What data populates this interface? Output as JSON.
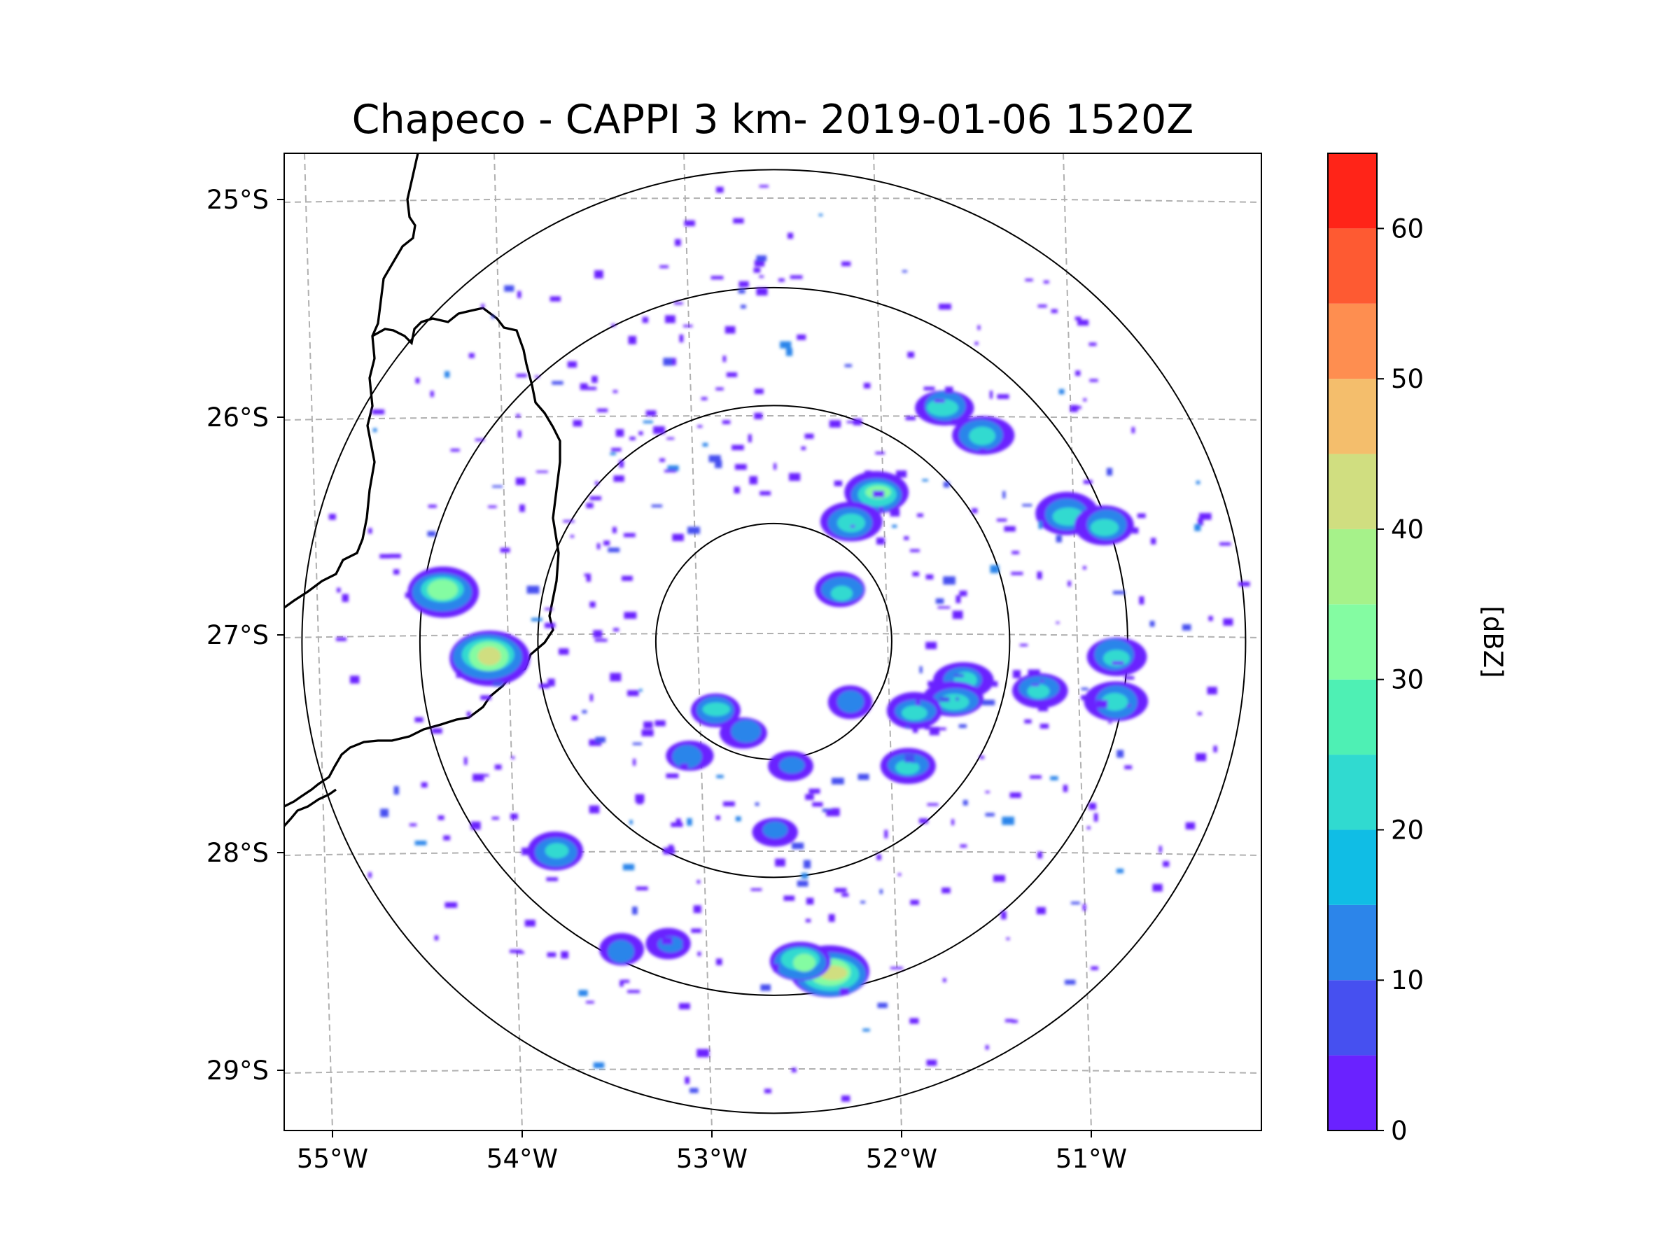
{
  "chart_data": {
    "type": "heatmap",
    "title": "Chapeco - CAPPI 3 km- 2019-01-06 1520Z",
    "radar_center": {
      "lon": -52.6,
      "lat": -27.03
    },
    "range_rings_deg": [
      0.5,
      1.0,
      1.5,
      2.0
    ],
    "map_extent": {
      "lon": [
        -55.2,
        -50.0
      ],
      "lat": [
        -29.3,
        -24.8
      ]
    },
    "x_ticks": [
      {
        "lon": -55,
        "label": "55°W"
      },
      {
        "lon": -54,
        "label": "54°W"
      },
      {
        "lon": -53,
        "label": "53°W"
      },
      {
        "lon": -52,
        "label": "52°W"
      },
      {
        "lon": -51,
        "label": "51°W"
      }
    ],
    "y_ticks": [
      {
        "lat": -25,
        "label": "25°S"
      },
      {
        "lat": -26,
        "label": "26°S"
      },
      {
        "lat": -27,
        "label": "27°S"
      },
      {
        "lat": -28,
        "label": "28°S"
      },
      {
        "lat": -29,
        "label": "29°S"
      }
    ],
    "gridlines": true,
    "colorbar": {
      "label": "[dBZ]",
      "min": 0,
      "max": 65,
      "bounds": [
        0,
        5,
        10,
        15,
        20,
        25,
        30,
        35,
        40,
        45,
        50,
        55,
        60,
        65
      ],
      "colors": [
        "#6a22ff",
        "#4650f0",
        "#2c85ea",
        "#10bde5",
        "#30dad0",
        "#4ef0b4",
        "#84fca2",
        "#a6f28a",
        "#d0de80",
        "#f4be6c",
        "#fe8e50",
        "#fe5a32",
        "#ff2418"
      ],
      "ticks": [
        0,
        10,
        20,
        30,
        40,
        50,
        60
      ],
      "tick_labels": [
        "0",
        "10",
        "20",
        "30",
        "40",
        "50",
        "60"
      ]
    },
    "echoes": [
      {
        "lon": -52.05,
        "lat": -26.35,
        "dbz": 30
      },
      {
        "lon": -52.2,
        "lat": -26.48,
        "dbz": 28
      },
      {
        "lon": -51.5,
        "lat": -26.08,
        "dbz": 28
      },
      {
        "lon": -51.7,
        "lat": -25.95,
        "dbz": 25
      },
      {
        "lon": -51.05,
        "lat": -26.45,
        "dbz": 28
      },
      {
        "lon": -50.85,
        "lat": -26.5,
        "dbz": 25
      },
      {
        "lon": -50.8,
        "lat": -27.1,
        "dbz": 25
      },
      {
        "lon": -50.8,
        "lat": -27.3,
        "dbz": 28
      },
      {
        "lon": -51.6,
        "lat": -27.2,
        "dbz": 25
      },
      {
        "lon": -51.65,
        "lat": -27.3,
        "dbz": 25
      },
      {
        "lon": -51.85,
        "lat": -27.35,
        "dbz": 20
      },
      {
        "lon": -51.9,
        "lat": -27.6,
        "dbz": 20
      },
      {
        "lon": -51.2,
        "lat": -27.25,
        "dbz": 20
      },
      {
        "lon": -52.25,
        "lat": -26.8,
        "dbz": 22
      },
      {
        "lon": -52.3,
        "lat": -28.55,
        "dbz": 45
      },
      {
        "lon": -52.45,
        "lat": -28.5,
        "dbz": 30
      },
      {
        "lon": -54.35,
        "lat": -26.8,
        "dbz": 38
      },
      {
        "lon": -54.1,
        "lat": -27.1,
        "dbz": 45
      },
      {
        "lon": -53.75,
        "lat": -28.0,
        "dbz": 25
      },
      {
        "lon": -52.9,
        "lat": -27.35,
        "dbz": 20
      },
      {
        "lon": -52.75,
        "lat": -27.45,
        "dbz": 18
      },
      {
        "lon": -53.05,
        "lat": -27.55,
        "dbz": 18
      },
      {
        "lon": -52.2,
        "lat": -27.3,
        "dbz": 15
      },
      {
        "lon": -53.4,
        "lat": -28.45,
        "dbz": 15
      },
      {
        "lon": -53.15,
        "lat": -28.42,
        "dbz": 15
      },
      {
        "lon": -52.5,
        "lat": -27.6,
        "dbz": 15
      },
      {
        "lon": -52.6,
        "lat": -27.9,
        "dbz": 15
      }
    ]
  }
}
